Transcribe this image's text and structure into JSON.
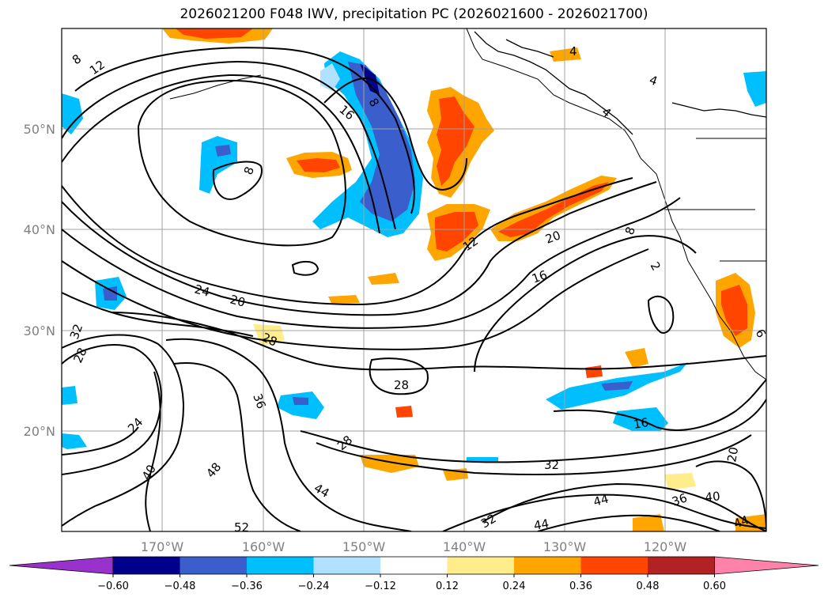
{
  "title": "2026021200 F048 IWV, precipitation PC (2026021600 - 2026021700)",
  "map": {
    "lat_labels": [
      "50°N",
      "40°N",
      "30°N",
      "20°N"
    ],
    "lon_labels": [
      "170°W",
      "160°W",
      "150°W",
      "140°W",
      "130°W",
      "120°W"
    ],
    "contour_labels": [
      "8",
      "12",
      "16",
      "8",
      "8",
      "12",
      "20",
      "16",
      "24",
      "20",
      "28",
      "32",
      "28",
      "28",
      "24",
      "36",
      "40",
      "48",
      "28",
      "32",
      "44",
      "44",
      "44",
      "16",
      "20",
      "36",
      "40",
      "44",
      "52",
      "32",
      "2",
      "4",
      "4",
      "4",
      "8",
      "6"
    ]
  },
  "colorbar": {
    "ticks": [
      "−0.60",
      "−0.48",
      "−0.36",
      "−0.24",
      "−0.12",
      "0.12",
      "0.24",
      "0.36",
      "0.48",
      "0.60"
    ],
    "colors": [
      "#9932cc",
      "#00008b",
      "#3a5fcd",
      "#00bfff",
      "#b0e2ff",
      "#ffffff",
      "#ffec8b",
      "#ffa500",
      "#ff4500",
      "#b22222",
      "#ff82ab"
    ]
  },
  "colors": {
    "outline": "#000000",
    "grid": "#a0a0a0",
    "tick_text": "#808080"
  }
}
